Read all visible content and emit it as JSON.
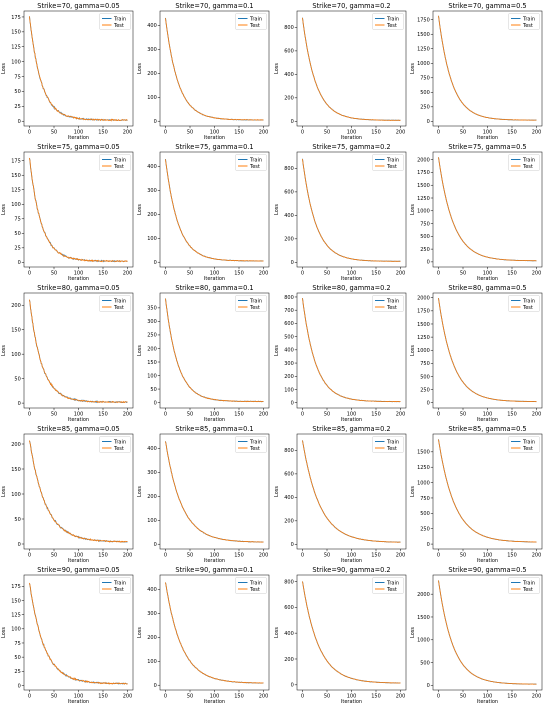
{
  "colors": {
    "train": "#1f77b4",
    "test": "#ff7f0e"
  },
  "chart_data": [
    {
      "type": "line",
      "title": "Strike=70, gamma=0.05",
      "xlabel": "Iteration",
      "ylabel": "Loss",
      "xlim": [
        0,
        200
      ],
      "ylim": [
        -8,
        185
      ],
      "xticks": [
        0,
        50,
        100,
        150,
        200
      ],
      "yticks": [
        0,
        25,
        50,
        75,
        100,
        125,
        150,
        175
      ],
      "legend_position": "top-right",
      "start": 176,
      "final": 2,
      "tau": 24,
      "noise": 1.6,
      "series": [
        {
          "name": "Train",
          "values": []
        },
        {
          "name": "Test",
          "values": []
        }
      ]
    },
    {
      "type": "line",
      "title": "Strike=70, gamma=0.1",
      "xlabel": "Iteration",
      "ylabel": "Loss",
      "xlim": [
        0,
        200
      ],
      "ylim": [
        -20,
        460
      ],
      "xticks": [
        0,
        50,
        100,
        150,
        200
      ],
      "yticks": [
        0,
        100,
        200,
        300,
        400
      ],
      "legend_position": "top-right",
      "start": 430,
      "final": 5,
      "tau": 26,
      "noise": 1.5,
      "series": [
        {
          "name": "Train",
          "values": []
        },
        {
          "name": "Test",
          "values": []
        }
      ]
    },
    {
      "type": "line",
      "title": "Strike=70, gamma=0.2",
      "xlabel": "Iteration",
      "ylabel": "Loss",
      "xlim": [
        0,
        200
      ],
      "ylim": [
        -40,
        940
      ],
      "xticks": [
        0,
        50,
        100,
        150,
        200
      ],
      "yticks": [
        0,
        200,
        400,
        600,
        800
      ],
      "legend_position": "top-right",
      "start": 880,
      "final": 8,
      "tau": 27,
      "noise": 2,
      "series": [
        {
          "name": "Train",
          "values": []
        },
        {
          "name": "Test",
          "values": []
        }
      ]
    },
    {
      "type": "line",
      "title": "Strike=70, gamma=0.5",
      "xlabel": "Iteration",
      "ylabel": "Loss",
      "xlim": [
        0,
        200
      ],
      "ylim": [
        -80,
        1900
      ],
      "xticks": [
        0,
        50,
        100,
        150,
        200
      ],
      "yticks": [
        0,
        250,
        500,
        750,
        1000,
        1250,
        1500,
        1750
      ],
      "legend_position": "top-right",
      "start": 1820,
      "final": 20,
      "tau": 27,
      "noise": 3,
      "series": [
        {
          "name": "Train",
          "values": []
        },
        {
          "name": "Test",
          "values": []
        }
      ]
    },
    {
      "type": "line",
      "title": "Strike=75, gamma=0.05",
      "xlabel": "Iteration",
      "ylabel": "Loss",
      "xlim": [
        0,
        200
      ],
      "ylim": [
        -8,
        190
      ],
      "xticks": [
        0,
        50,
        100,
        150,
        200
      ],
      "yticks": [
        0,
        25,
        50,
        75,
        100,
        125,
        150,
        175
      ],
      "legend_position": "top-right",
      "start": 180,
      "final": 2,
      "tau": 24,
      "noise": 1.6,
      "series": [
        {
          "name": "Train",
          "values": []
        },
        {
          "name": "Test",
          "values": []
        }
      ]
    },
    {
      "type": "line",
      "title": "Strike=75, gamma=0.1",
      "xlabel": "Iteration",
      "ylabel": "Loss",
      "xlim": [
        0,
        200
      ],
      "ylim": [
        -20,
        460
      ],
      "xticks": [
        0,
        50,
        100,
        150,
        200
      ],
      "yticks": [
        0,
        100,
        200,
        300,
        400
      ],
      "legend_position": "top-right",
      "start": 430,
      "final": 5,
      "tau": 26,
      "noise": 1.5,
      "series": [
        {
          "name": "Train",
          "values": []
        },
        {
          "name": "Test",
          "values": []
        }
      ]
    },
    {
      "type": "line",
      "title": "Strike=75, gamma=0.2",
      "xlabel": "Iteration",
      "ylabel": "Loss",
      "xlim": [
        0,
        200
      ],
      "ylim": [
        -40,
        940
      ],
      "xticks": [
        0,
        50,
        100,
        150,
        200
      ],
      "yticks": [
        0,
        200,
        400,
        600,
        800
      ],
      "legend_position": "top-right",
      "start": 880,
      "final": 8,
      "tau": 27,
      "noise": 2,
      "series": [
        {
          "name": "Train",
          "values": []
        },
        {
          "name": "Test",
          "values": []
        }
      ]
    },
    {
      "type": "line",
      "title": "Strike=75, gamma=0.5",
      "xlabel": "Iteration",
      "ylabel": "Loss",
      "xlim": [
        0,
        200
      ],
      "ylim": [
        -100,
        2150
      ],
      "xticks": [
        0,
        50,
        100,
        150,
        200
      ],
      "yticks": [
        0,
        250,
        500,
        750,
        1000,
        1250,
        1500,
        1750,
        2000
      ],
      "legend_position": "top-right",
      "start": 2050,
      "final": 20,
      "tau": 30,
      "noise": 3,
      "series": [
        {
          "name": "Train",
          "values": []
        },
        {
          "name": "Test",
          "values": []
        }
      ]
    },
    {
      "type": "line",
      "title": "Strike=80, gamma=0.05",
      "xlabel": "Iteration",
      "ylabel": "Loss",
      "xlim": [
        0,
        200
      ],
      "ylim": [
        -10,
        225
      ],
      "xticks": [
        0,
        50,
        100,
        150,
        200
      ],
      "yticks": [
        0,
        50,
        100,
        150,
        200
      ],
      "legend_position": "top-right",
      "start": 212,
      "final": 2,
      "tau": 25,
      "noise": 1.8,
      "series": [
        {
          "name": "Train",
          "values": []
        },
        {
          "name": "Test",
          "values": []
        }
      ]
    },
    {
      "type": "line",
      "title": "Strike=80, gamma=0.1",
      "xlabel": "Iteration",
      "ylabel": "Loss",
      "xlim": [
        0,
        200
      ],
      "ylim": [
        -20,
        405
      ],
      "xticks": [
        0,
        50,
        100,
        150,
        200
      ],
      "yticks": [
        0,
        50,
        100,
        150,
        200,
        250,
        300,
        350
      ],
      "legend_position": "top-right",
      "start": 385,
      "final": 4,
      "tau": 25,
      "noise": 1.5,
      "series": [
        {
          "name": "Train",
          "values": []
        },
        {
          "name": "Test",
          "values": []
        }
      ]
    },
    {
      "type": "line",
      "title": "Strike=80, gamma=0.2",
      "xlabel": "Iteration",
      "ylabel": "Loss",
      "xlim": [
        0,
        200
      ],
      "ylim": [
        -40,
        830
      ],
      "xticks": [
        0,
        50,
        100,
        150,
        200
      ],
      "yticks": [
        0,
        100,
        200,
        300,
        400,
        500,
        600,
        700,
        800
      ],
      "legend_position": "top-right",
      "start": 790,
      "final": 8,
      "tau": 27,
      "noise": 2,
      "series": [
        {
          "name": "Train",
          "values": []
        },
        {
          "name": "Test",
          "values": []
        }
      ]
    },
    {
      "type": "line",
      "title": "Strike=80, gamma=0.5",
      "xlabel": "Iteration",
      "ylabel": "Loss",
      "xlim": [
        0,
        200
      ],
      "ylim": [
        -100,
        2090
      ],
      "xticks": [
        0,
        50,
        100,
        150,
        200
      ],
      "yticks": [
        0,
        250,
        500,
        750,
        1000,
        1250,
        1500,
        1750,
        2000
      ],
      "legend_position": "top-right",
      "start": 1990,
      "final": 20,
      "tau": 30,
      "noise": 3,
      "series": [
        {
          "name": "Train",
          "values": []
        },
        {
          "name": "Test",
          "values": []
        }
      ]
    },
    {
      "type": "line",
      "title": "Strike=85, gamma=0.05",
      "xlabel": "Iteration",
      "ylabel": "Loss",
      "xlim": [
        0,
        200
      ],
      "ylim": [
        -10,
        220
      ],
      "xticks": [
        0,
        50,
        100,
        150,
        200
      ],
      "yticks": [
        0,
        50,
        100,
        150,
        200
      ],
      "legend_position": "top-right",
      "start": 208,
      "final": 4,
      "tau": 33,
      "noise": 1.8,
      "series": [
        {
          "name": "Train",
          "values": []
        },
        {
          "name": "Test",
          "values": []
        }
      ]
    },
    {
      "type": "line",
      "title": "Strike=85, gamma=0.1",
      "xlabel": "Iteration",
      "ylabel": "Loss",
      "xlim": [
        0,
        200
      ],
      "ylim": [
        -20,
        460
      ],
      "xticks": [
        0,
        50,
        100,
        150,
        200
      ],
      "yticks": [
        0,
        100,
        200,
        300,
        400
      ],
      "legend_position": "top-right",
      "start": 430,
      "final": 8,
      "tau": 33,
      "noise": 1.5,
      "series": [
        {
          "name": "Train",
          "values": []
        },
        {
          "name": "Test",
          "values": []
        }
      ]
    },
    {
      "type": "line",
      "title": "Strike=85, gamma=0.2",
      "xlabel": "Iteration",
      "ylabel": "Loss",
      "xlim": [
        0,
        200
      ],
      "ylim": [
        -40,
        940
      ],
      "xticks": [
        0,
        50,
        100,
        150,
        200
      ],
      "yticks": [
        0,
        200,
        400,
        600,
        800
      ],
      "legend_position": "top-right",
      "start": 885,
      "final": 15,
      "tau": 35,
      "noise": 2,
      "series": [
        {
          "name": "Train",
          "values": []
        },
        {
          "name": "Test",
          "values": []
        }
      ]
    },
    {
      "type": "line",
      "title": "Strike=85, gamma=0.5",
      "xlabel": "Iteration",
      "ylabel": "Loss",
      "xlim": [
        0,
        200
      ],
      "ylim": [
        -80,
        1790
      ],
      "xticks": [
        0,
        50,
        100,
        150,
        200
      ],
      "yticks": [
        0,
        250,
        500,
        750,
        1000,
        1250,
        1500
      ],
      "legend_position": "top-right",
      "start": 1700,
      "final": 30,
      "tau": 33,
      "noise": 3,
      "series": [
        {
          "name": "Train",
          "values": []
        },
        {
          "name": "Test",
          "values": []
        }
      ]
    },
    {
      "type": "line",
      "title": "Strike=90, gamma=0.05",
      "xlabel": "Iteration",
      "ylabel": "Loss",
      "xlim": [
        0,
        200
      ],
      "ylim": [
        -8,
        195
      ],
      "xticks": [
        0,
        50,
        100,
        150,
        200
      ],
      "yticks": [
        0,
        25,
        50,
        75,
        100,
        125,
        150,
        175
      ],
      "legend_position": "top-right",
      "start": 182,
      "final": 3,
      "tau": 30,
      "noise": 1.6,
      "series": [
        {
          "name": "Train",
          "values": []
        },
        {
          "name": "Test",
          "values": []
        }
      ]
    },
    {
      "type": "line",
      "title": "Strike=90, gamma=0.1",
      "xlabel": "Iteration",
      "ylabel": "Loss",
      "xlim": [
        0,
        200
      ],
      "ylim": [
        -20,
        460
      ],
      "xticks": [
        0,
        50,
        100,
        150,
        200
      ],
      "yticks": [
        0,
        100,
        200,
        300,
        400
      ],
      "legend_position": "top-right",
      "start": 430,
      "final": 8,
      "tau": 33,
      "noise": 1.5,
      "series": [
        {
          "name": "Train",
          "values": []
        },
        {
          "name": "Test",
          "values": []
        }
      ]
    },
    {
      "type": "line",
      "title": "Strike=90, gamma=0.2",
      "xlabel": "Iteration",
      "ylabel": "Loss",
      "xlim": [
        0,
        200
      ],
      "ylim": [
        -40,
        850
      ],
      "xticks": [
        0,
        50,
        100,
        150,
        200
      ],
      "yticks": [
        0,
        200,
        400,
        600,
        800
      ],
      "legend_position": "top-right",
      "start": 800,
      "final": 12,
      "tau": 33,
      "noise": 2,
      "series": [
        {
          "name": "Train",
          "values": []
        },
        {
          "name": "Test",
          "values": []
        }
      ]
    },
    {
      "type": "line",
      "title": "Strike=90, gamma=0.5",
      "xlabel": "Iteration",
      "ylabel": "Loss",
      "xlim": [
        0,
        200
      ],
      "ylim": [
        -100,
        2420
      ],
      "xticks": [
        0,
        50,
        100,
        150,
        200
      ],
      "yticks": [
        0,
        500,
        1000,
        1500,
        2000
      ],
      "legend_position": "top-right",
      "start": 2300,
      "final": 25,
      "tau": 30,
      "noise": 3,
      "series": [
        {
          "name": "Train",
          "values": []
        },
        {
          "name": "Test",
          "values": []
        }
      ]
    }
  ]
}
